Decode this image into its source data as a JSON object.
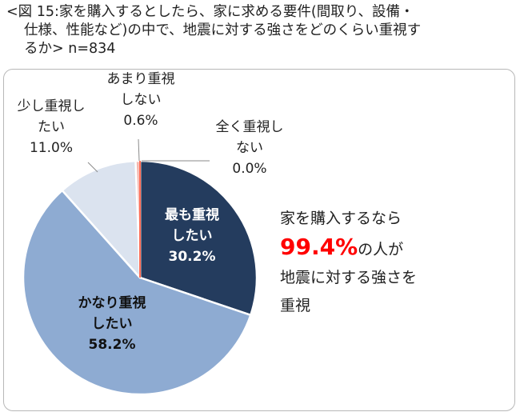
{
  "title": {
    "line1": "<図 15:家を購入するとしたら、家に求める要件(間取り、設備・",
    "line2": "仕様、性能など)の中で、地震に対する強さをどのくらい重視す",
    "line3": "るか> n=834"
  },
  "callout": {
    "line1": "家を購入するなら",
    "highlight": "99.4%",
    "line2_suffix": "の人が",
    "line3": "地震に対する強さを",
    "line4": "重視"
  },
  "colors": {
    "most": "#243c5e",
    "fairly": "#8eabd2",
    "somewhat": "#dbe3ef",
    "not_much": "#f4b8b0",
    "not_at_all": "#ff3b1f",
    "highlight": "#ff0000"
  },
  "chart_data": {
    "type": "pie",
    "slices": [
      {
        "label_lines": [
          "最も重視",
          "したい"
        ],
        "value": 30.2,
        "value_label": "30.2%"
      },
      {
        "label_lines": [
          "かなり重視",
          "したい"
        ],
        "value": 58.2,
        "value_label": "58.2%"
      },
      {
        "label_lines": [
          "少し重視し",
          "たい"
        ],
        "value": 11.0,
        "value_label": "11.0%"
      },
      {
        "label_lines": [
          "あまり重視",
          "しない"
        ],
        "value": 0.6,
        "value_label": "0.6%"
      },
      {
        "label_lines": [
          "全く重視し",
          "ない"
        ],
        "value": 0.0,
        "value_label": "0.0%"
      }
    ]
  }
}
